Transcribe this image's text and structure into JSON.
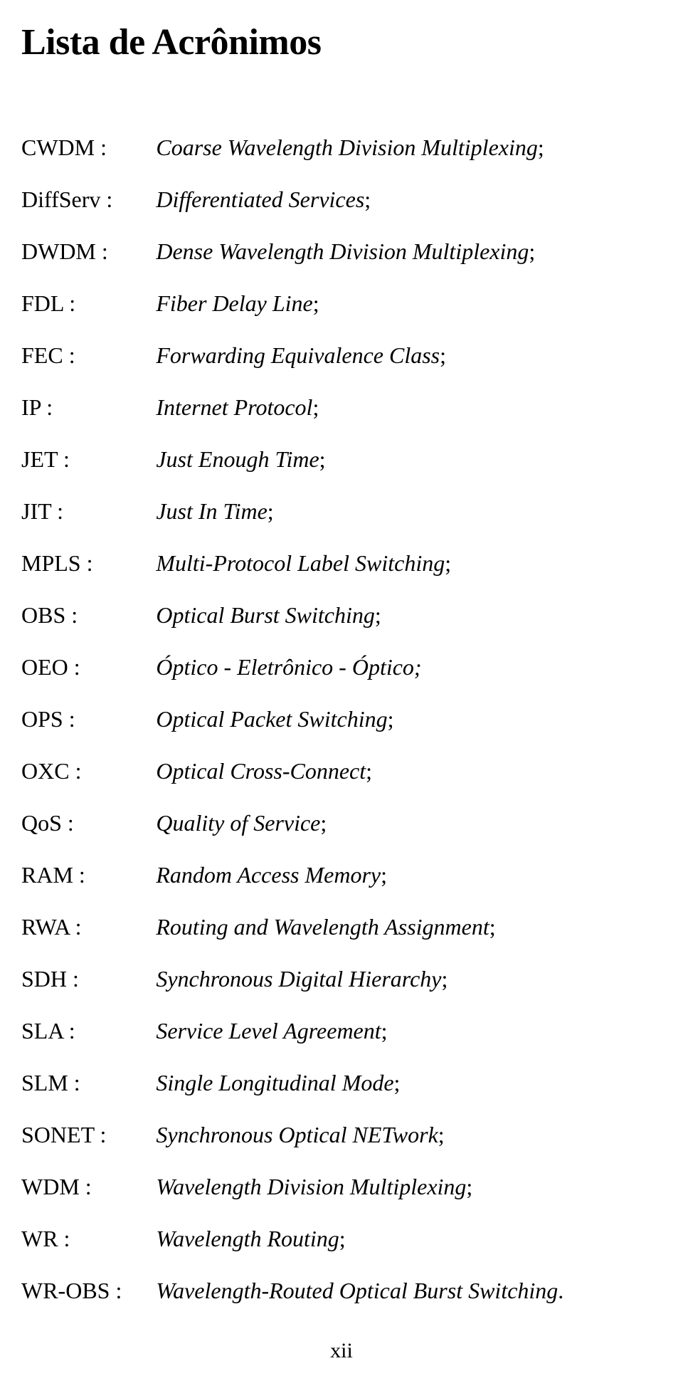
{
  "title": "Lista de Acrônimos",
  "pageNumber": "xii",
  "colors": {
    "background": "#ffffff",
    "text": "#000000"
  },
  "typography": {
    "title_fontsize": 52,
    "body_fontsize": 32,
    "pagenum_fontsize": 30,
    "font_family": "Times New Roman"
  },
  "entries": [
    {
      "label": "CWDM :",
      "italic": "Coarse Wavelength Division Multiplexing",
      "suffix": ";"
    },
    {
      "label": "DiffServ :",
      "italic": "Differentiated Services",
      "suffix": ";"
    },
    {
      "label": "DWDM :",
      "italic": "Dense Wavelength Division Multiplexing",
      "suffix": ";"
    },
    {
      "label": "FDL :",
      "italic": "Fiber Delay Line",
      "suffix": ";"
    },
    {
      "label": "FEC :",
      "italic": "Forwarding Equivalence Class",
      "suffix": ";"
    },
    {
      "label": "IP :",
      "italic": "Internet Protocol",
      "suffix": ";"
    },
    {
      "label": "JET :",
      "italic": "Just Enough Time",
      "suffix": ";"
    },
    {
      "label": "JIT :",
      "italic": "Just In Time",
      "suffix": ";"
    },
    {
      "label": "MPLS :",
      "italic": "Multi-Protocol Label Switching",
      "suffix": ";"
    },
    {
      "label": "OBS :",
      "italic": "Optical Burst Switching",
      "suffix": ";"
    },
    {
      "label": "OEO :",
      "italic": "Óptico - Eletrônico - Óptico;",
      "suffix": ""
    },
    {
      "label": "OPS :",
      "italic": "Optical Packet Switching",
      "suffix": ";"
    },
    {
      "label": "OXC :",
      "italic": "Optical Cross-Connect",
      "suffix": ";"
    },
    {
      "label": "QoS :",
      "italic": "Quality of Service",
      "suffix": ";"
    },
    {
      "label": "RAM :",
      "italic": "Random Access Memory",
      "suffix": ";"
    },
    {
      "label": "RWA :",
      "italic": "Routing and Wavelength Assignment",
      "suffix": ";"
    },
    {
      "label": "SDH :",
      "italic": "Synchronous Digital Hierarchy",
      "suffix": ";"
    },
    {
      "label": "SLA :",
      "italic": "Service Level Agreement",
      "suffix": ";"
    },
    {
      "label": "SLM :",
      "italic": "Single Longitudinal Mode",
      "suffix": ";"
    },
    {
      "label": "SONET :",
      "italic": "Synchronous Optical NETwork",
      "suffix": ";"
    },
    {
      "label": "WDM :",
      "italic": "Wavelength Division Multiplexing",
      "suffix": ";"
    },
    {
      "label": "WR :",
      "italic": "Wavelength Routing",
      "suffix": ";"
    },
    {
      "label": "WR-OBS :",
      "italic": "Wavelength-Routed Optical Burst Switching",
      "suffix": "."
    }
  ]
}
